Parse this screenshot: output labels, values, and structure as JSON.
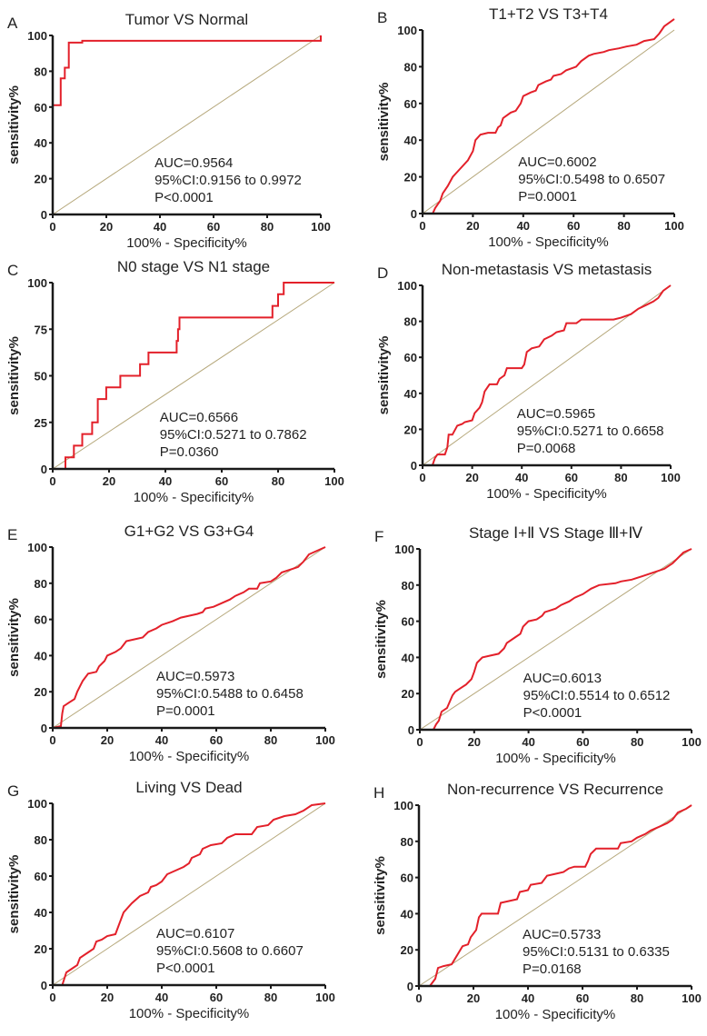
{
  "chart_data": [
    {
      "type": "line",
      "panel": "A",
      "title": "Tumor VS Normal",
      "xlabel": "100% - Specificity%",
      "ylabel": "sensitivity%",
      "xlim": [
        0,
        100
      ],
      "ylim": [
        0,
        100
      ],
      "xticks": [
        0,
        20,
        40,
        60,
        80,
        100
      ],
      "yticks": [
        0,
        20,
        40,
        60,
        80,
        100
      ],
      "stats": [
        "AUC=0.9564",
        "95%CI:0.9156 to 0.9972",
        "P<0.0001"
      ],
      "roc": [
        [
          0,
          0
        ],
        [
          0,
          61
        ],
        [
          3,
          61
        ],
        [
          3,
          76
        ],
        [
          4.5,
          76
        ],
        [
          4.5,
          82
        ],
        [
          6,
          82
        ],
        [
          6,
          96
        ],
        [
          11,
          96
        ],
        [
          11,
          97
        ],
        [
          100,
          97
        ],
        [
          100,
          100
        ]
      ]
    },
    {
      "type": "line",
      "panel": "B",
      "title": "T1+T2 VS T3+T4",
      "xlabel": "100% - Specificity%",
      "ylabel": "sensitivity%",
      "xlim": [
        0,
        100
      ],
      "ylim": [
        0,
        100
      ],
      "xticks": [
        0,
        20,
        40,
        60,
        80,
        100
      ],
      "yticks": [
        0,
        20,
        40,
        60,
        80,
        100
      ],
      "stats": [
        "AUC=0.6002",
        "95%CI:0.5498 to 0.6507",
        "P=0.0001"
      ],
      "roc": [
        [
          0,
          0
        ],
        [
          4,
          0
        ],
        [
          5,
          3
        ],
        [
          7,
          7
        ],
        [
          8,
          11
        ],
        [
          10,
          15
        ],
        [
          12,
          20
        ],
        [
          14,
          23
        ],
        [
          16,
          26
        ],
        [
          18,
          29
        ],
        [
          20,
          34
        ],
        [
          21,
          40
        ],
        [
          23,
          43
        ],
        [
          26,
          44
        ],
        [
          29,
          44
        ],
        [
          30,
          47
        ],
        [
          31,
          48
        ],
        [
          32,
          52
        ],
        [
          35,
          55
        ],
        [
          37,
          56
        ],
        [
          39,
          60
        ],
        [
          40,
          64
        ],
        [
          43,
          66
        ],
        [
          45,
          67
        ],
        [
          46,
          70
        ],
        [
          49,
          72
        ],
        [
          51,
          73
        ],
        [
          52,
          75
        ],
        [
          55,
          76
        ],
        [
          57,
          78
        ],
        [
          59,
          79
        ],
        [
          61,
          80
        ],
        [
          63,
          83
        ],
        [
          66,
          86
        ],
        [
          68,
          87
        ],
        [
          72,
          88
        ],
        [
          74,
          89
        ],
        [
          78,
          90
        ],
        [
          81,
          91
        ],
        [
          85,
          92
        ],
        [
          88,
          94
        ],
        [
          92,
          95
        ],
        [
          94,
          98
        ],
        [
          96,
          102
        ],
        [
          98,
          104
        ],
        [
          100,
          106
        ]
      ]
    },
    {
      "type": "line",
      "panel": "C",
      "title": "N0 stage VS N1 stage",
      "xlabel": "100% - Specificity%",
      "ylabel": "sensitivity%",
      "xlim": [
        0,
        100
      ],
      "ylim": [
        0,
        100
      ],
      "xticks": [
        0,
        20,
        40,
        60,
        80,
        100
      ],
      "yticks": [
        0,
        25,
        50,
        75,
        100
      ],
      "stats": [
        "AUC=0.6566",
        "95%CI:0.5271 to 0.7862",
        "P=0.0360"
      ],
      "roc": [
        [
          0,
          0
        ],
        [
          4.5,
          0
        ],
        [
          4.5,
          6.25
        ],
        [
          7.5,
          6.25
        ],
        [
          7.5,
          12.5
        ],
        [
          10.5,
          12.5
        ],
        [
          10.5,
          18.75
        ],
        [
          14,
          18.75
        ],
        [
          14,
          25
        ],
        [
          16,
          25
        ],
        [
          16,
          37.5
        ],
        [
          19,
          37.5
        ],
        [
          19,
          43.75
        ],
        [
          24,
          43.75
        ],
        [
          24,
          50
        ],
        [
          31,
          50
        ],
        [
          31,
          56.25
        ],
        [
          34,
          56.25
        ],
        [
          34,
          62.5
        ],
        [
          44,
          62.5
        ],
        [
          44,
          68.75
        ],
        [
          44.5,
          68.75
        ],
        [
          44.5,
          75
        ],
        [
          45,
          75
        ],
        [
          45,
          81.25
        ],
        [
          78,
          81.25
        ],
        [
          78,
          87.5
        ],
        [
          80,
          87.5
        ],
        [
          80,
          93.75
        ],
        [
          82,
          93.75
        ],
        [
          82,
          100
        ],
        [
          100,
          100
        ]
      ]
    },
    {
      "type": "line",
      "panel": "D",
      "title": "Non-metastasis VS metastasis",
      "xlabel": "100% - Specificity%",
      "ylabel": "sensitivity%",
      "xlim": [
        0,
        100
      ],
      "ylim": [
        0,
        100
      ],
      "xticks": [
        0,
        20,
        40,
        60,
        80,
        100
      ],
      "yticks": [
        0,
        20,
        40,
        60,
        80,
        100
      ],
      "stats": [
        "AUC=0.5965",
        "95%CI:0.5271 to 0.6658",
        "P=0.0068"
      ],
      "roc": [
        [
          0,
          0
        ],
        [
          4,
          0
        ],
        [
          5,
          4
        ],
        [
          6,
          6
        ],
        [
          9,
          6
        ],
        [
          10,
          10
        ],
        [
          10.5,
          17
        ],
        [
          12,
          17
        ],
        [
          14,
          22
        ],
        [
          16,
          23
        ],
        [
          17,
          24
        ],
        [
          20,
          25
        ],
        [
          21,
          29
        ],
        [
          23,
          32
        ],
        [
          24,
          35
        ],
        [
          25,
          41
        ],
        [
          27,
          45
        ],
        [
          30,
          45
        ],
        [
          31,
          48
        ],
        [
          33,
          50
        ],
        [
          34,
          54
        ],
        [
          40,
          54
        ],
        [
          41,
          56
        ],
        [
          42,
          63
        ],
        [
          44,
          65
        ],
        [
          47,
          66
        ],
        [
          49,
          70
        ],
        [
          52,
          72
        ],
        [
          54,
          74
        ],
        [
          57,
          75
        ],
        [
          58,
          79
        ],
        [
          62,
          79
        ],
        [
          64,
          81
        ],
        [
          77,
          81
        ],
        [
          80,
          82
        ],
        [
          84,
          84
        ],
        [
          87,
          87
        ],
        [
          90,
          89
        ],
        [
          93,
          91
        ],
        [
          95,
          93
        ],
        [
          97,
          97
        ],
        [
          100,
          100
        ]
      ]
    },
    {
      "type": "line",
      "panel": "E",
      "title": "G1+G2 VS G3+G4",
      "xlabel": "100% - Specificity%",
      "ylabel": "sensitivity%",
      "xlim": [
        0,
        100
      ],
      "ylim": [
        0,
        100
      ],
      "xticks": [
        0,
        20,
        40,
        60,
        80,
        100
      ],
      "yticks": [
        0,
        20,
        40,
        60,
        80,
        100
      ],
      "stats": [
        "AUC=0.5973",
        "95%CI:0.5488 to 0.6458",
        "P=0.0001"
      ],
      "roc": [
        [
          0,
          0
        ],
        [
          3,
          1
        ],
        [
          3.5,
          8
        ],
        [
          4,
          12
        ],
        [
          6,
          14
        ],
        [
          8,
          16
        ],
        [
          9,
          20
        ],
        [
          10,
          23
        ],
        [
          11,
          26
        ],
        [
          13,
          30
        ],
        [
          16,
          31
        ],
        [
          17,
          34
        ],
        [
          19,
          37
        ],
        [
          20,
          40
        ],
        [
          23,
          42
        ],
        [
          25,
          44
        ],
        [
          26,
          46
        ],
        [
          27,
          48
        ],
        [
          30,
          49
        ],
        [
          33,
          50
        ],
        [
          35,
          53
        ],
        [
          38,
          55
        ],
        [
          40,
          57
        ],
        [
          44,
          59
        ],
        [
          47,
          61
        ],
        [
          50,
          62
        ],
        [
          53,
          63
        ],
        [
          55,
          64
        ],
        [
          56,
          66
        ],
        [
          59,
          67
        ],
        [
          62,
          69
        ],
        [
          65,
          71
        ],
        [
          67,
          73
        ],
        [
          70,
          75
        ],
        [
          72,
          77
        ],
        [
          75,
          77
        ],
        [
          76,
          80
        ],
        [
          80,
          81
        ],
        [
          82,
          83
        ],
        [
          84,
          86
        ],
        [
          88,
          88
        ],
        [
          90,
          89
        ],
        [
          92,
          92
        ],
        [
          94,
          96
        ],
        [
          97,
          98
        ],
        [
          100,
          100
        ]
      ]
    },
    {
      "type": "line",
      "panel": "F",
      "title": "Stage Ⅰ+Ⅱ VS Stage Ⅲ+Ⅳ",
      "xlabel": "100% - Specificity%",
      "ylabel": "sensitivity%",
      "xlim": [
        0,
        100
      ],
      "ylim": [
        0,
        100
      ],
      "xticks": [
        0,
        20,
        40,
        60,
        80,
        100
      ],
      "yticks": [
        0,
        20,
        40,
        60,
        80,
        100
      ],
      "stats": [
        "AUC=0.6013",
        "95%CI:0.5514 to 0.6512",
        "P<0.0001"
      ],
      "roc": [
        [
          0,
          0
        ],
        [
          5,
          0
        ],
        [
          6,
          3
        ],
        [
          7,
          5
        ],
        [
          8,
          10
        ],
        [
          10,
          12
        ],
        [
          12,
          19
        ],
        [
          13,
          21
        ],
        [
          15,
          23
        ],
        [
          17,
          25
        ],
        [
          19,
          28
        ],
        [
          20,
          32
        ],
        [
          21,
          37
        ],
        [
          23,
          40
        ],
        [
          26,
          41
        ],
        [
          29,
          42
        ],
        [
          31,
          45
        ],
        [
          32,
          48
        ],
        [
          35,
          51
        ],
        [
          37,
          53
        ],
        [
          38,
          57
        ],
        [
          40,
          60
        ],
        [
          43,
          61
        ],
        [
          45,
          63
        ],
        [
          46,
          65
        ],
        [
          48,
          66
        ],
        [
          50,
          67
        ],
        [
          52,
          69
        ],
        [
          55,
          71
        ],
        [
          57,
          73
        ],
        [
          60,
          75
        ],
        [
          63,
          78
        ],
        [
          66,
          80
        ],
        [
          72,
          81
        ],
        [
          74,
          82
        ],
        [
          78,
          83
        ],
        [
          82,
          85
        ],
        [
          86,
          87
        ],
        [
          90,
          89
        ],
        [
          93,
          92
        ],
        [
          95,
          95
        ],
        [
          97,
          98
        ],
        [
          100,
          100
        ]
      ]
    },
    {
      "type": "line",
      "panel": "G",
      "title": "Living VS Dead",
      "xlabel": "100% - Specificity%",
      "ylabel": "sensitivity%",
      "xlim": [
        0,
        100
      ],
      "ylim": [
        0,
        100
      ],
      "xticks": [
        0,
        20,
        40,
        60,
        80,
        100
      ],
      "yticks": [
        0,
        20,
        40,
        60,
        80,
        100
      ],
      "stats": [
        "AUC=0.6107",
        "95%CI:0.5608 to 0.6607",
        "P<0.0001"
      ],
      "roc": [
        [
          0,
          0
        ],
        [
          3.5,
          0
        ],
        [
          5,
          7
        ],
        [
          7,
          9
        ],
        [
          9,
          11
        ],
        [
          10,
          15
        ],
        [
          13,
          18
        ],
        [
          15,
          20
        ],
        [
          16,
          24
        ],
        [
          18,
          25
        ],
        [
          20,
          27
        ],
        [
          23,
          28
        ],
        [
          24,
          32
        ],
        [
          25,
          36
        ],
        [
          26,
          40
        ],
        [
          29,
          45
        ],
        [
          32,
          49
        ],
        [
          35,
          51
        ],
        [
          36,
          54
        ],
        [
          38,
          55
        ],
        [
          40,
          57
        ],
        [
          42,
          61
        ],
        [
          45,
          63
        ],
        [
          48,
          65
        ],
        [
          50,
          67
        ],
        [
          51,
          70
        ],
        [
          54,
          72
        ],
        [
          55,
          75
        ],
        [
          58,
          77
        ],
        [
          62,
          78
        ],
        [
          64,
          81
        ],
        [
          67,
          83
        ],
        [
          73,
          83
        ],
        [
          75,
          87
        ],
        [
          79,
          88
        ],
        [
          81,
          91
        ],
        [
          85,
          93
        ],
        [
          89,
          94
        ],
        [
          92,
          96
        ],
        [
          95,
          99
        ],
        [
          100,
          100
        ]
      ]
    },
    {
      "type": "line",
      "panel": "H",
      "title": "Non-recurrence VS Recurrence",
      "xlabel": "100% - Specificity%",
      "ylabel": "sensitivity%",
      "xlim": [
        0,
        100
      ],
      "ylim": [
        0,
        100
      ],
      "xticks": [
        0,
        20,
        40,
        60,
        80,
        100
      ],
      "yticks": [
        0,
        20,
        40,
        60,
        80,
        100
      ],
      "stats": [
        "AUC=0.5733",
        "95%CI:0.5131 to 0.6335",
        "P=0.0168"
      ],
      "roc": [
        [
          0,
          0
        ],
        [
          4,
          0
        ],
        [
          6,
          4
        ],
        [
          7,
          10
        ],
        [
          9,
          11
        ],
        [
          12,
          12
        ],
        [
          14,
          17
        ],
        [
          16,
          22
        ],
        [
          18,
          23
        ],
        [
          19,
          27
        ],
        [
          21,
          31
        ],
        [
          22,
          38
        ],
        [
          23,
          40
        ],
        [
          29,
          40
        ],
        [
          30,
          46
        ],
        [
          33,
          47
        ],
        [
          36,
          48
        ],
        [
          37,
          52
        ],
        [
          40,
          53
        ],
        [
          41,
          56
        ],
        [
          45,
          57
        ],
        [
          47,
          61
        ],
        [
          50,
          62
        ],
        [
          53,
          63
        ],
        [
          55,
          65
        ],
        [
          57,
          66
        ],
        [
          61,
          66
        ],
        [
          62,
          69
        ],
        [
          63,
          73
        ],
        [
          65,
          76
        ],
        [
          73,
          76
        ],
        [
          74,
          79
        ],
        [
          78,
          80
        ],
        [
          80,
          82
        ],
        [
          83,
          84
        ],
        [
          85,
          86
        ],
        [
          88,
          88
        ],
        [
          91,
          90
        ],
        [
          93,
          92
        ],
        [
          95,
          96
        ],
        [
          98,
          98
        ],
        [
          100,
          100
        ]
      ]
    }
  ],
  "colors": {
    "roc": "#e3202a",
    "reference": "#b5a77a",
    "axis": "#1a1a1a"
  }
}
